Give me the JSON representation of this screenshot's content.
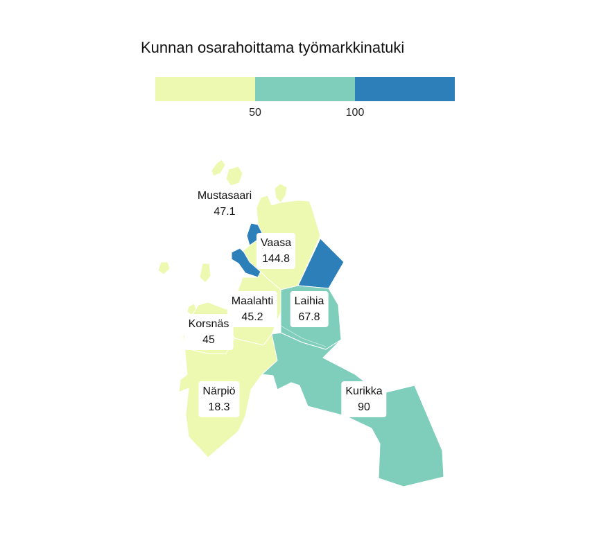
{
  "title": "Kunnan osarahoittama työmarkkinatuki",
  "legend": {
    "segments": [
      {
        "color": "#edf8b1"
      },
      {
        "color": "#7fcdbb"
      },
      {
        "color": "#2c7fb8"
      }
    ],
    "ticks": [
      "50",
      "100"
    ]
  },
  "colors": {
    "low": "#edf8b1",
    "mid": "#7fcdbb",
    "high": "#2c7fb8"
  },
  "regions": [
    {
      "name": "Mustasaari",
      "value": "47.1"
    },
    {
      "name": "Vaasa",
      "value": "144.8"
    },
    {
      "name": "Maalahti",
      "value": "45.2"
    },
    {
      "name": "Laihia",
      "value": "67.8"
    },
    {
      "name": "Korsnäs",
      "value": "45"
    },
    {
      "name": "Närpiö",
      "value": "18.3"
    },
    {
      "name": "Kurikka",
      "value": "90"
    }
  ]
}
